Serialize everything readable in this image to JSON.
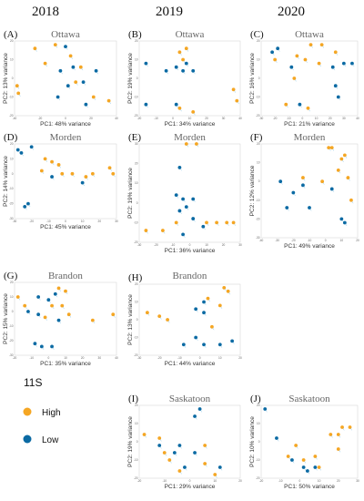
{
  "years": [
    "2018",
    "2019",
    "2020"
  ],
  "legend": {
    "title": "11S",
    "items": [
      {
        "label": "High",
        "color": "#f5a623"
      },
      {
        "label": "Low",
        "color": "#0b6aa3"
      }
    ]
  },
  "colors": {
    "high": "#f5a623",
    "low": "#0b6aa3",
    "label": "#5bb0dd",
    "frame": "#d8d8d8"
  },
  "chart_data": [
    {
      "type": "scatter",
      "panel": "(A)",
      "title": "Ottawa",
      "xlabel": "PC1: 48% variance",
      "ylabel": "PC2: 13% variance",
      "xlim": [
        -40,
        40
      ],
      "ylim": [
        -20,
        20
      ],
      "xticks": [
        -40,
        -20,
        0,
        20,
        40
      ],
      "yticks": [
        -20,
        -10,
        0,
        10,
        20
      ],
      "series": [
        {
          "group": "High",
          "points": [
            [
              -24,
              16
            ],
            [
              -8,
              18
            ],
            [
              4,
              12
            ],
            [
              -16,
              8
            ],
            [
              12,
              6
            ],
            [
              -37,
              -8
            ],
            [
              8,
              -2
            ],
            [
              34,
              -12
            ],
            [
              22,
              -10
            ],
            [
              -38,
              -4
            ]
          ]
        },
        {
          "group": "Low",
          "points": [
            [
              0,
              17
            ],
            [
              6,
              6
            ],
            [
              -4,
              4
            ],
            [
              14,
              -2
            ],
            [
              24,
              4
            ],
            [
              -6,
              -10
            ],
            [
              16,
              -14
            ],
            [
              2,
              -4
            ]
          ]
        }
      ]
    },
    {
      "type": "scatter",
      "panel": "(B)",
      "title": "Ottawa",
      "xlabel": "PC1: 34% variance",
      "ylabel": "PC2: 19% variance",
      "xlim": [
        -20,
        40
      ],
      "ylim": [
        -20,
        20
      ],
      "xticks": [
        -20,
        -10,
        0,
        10,
        20,
        30,
        40
      ],
      "yticks": [
        -20,
        -10,
        0,
        10,
        20
      ],
      "series": [
        {
          "group": "High",
          "points": [
            [
              8,
              16
            ],
            [
              4,
              14
            ],
            [
              36,
              -6
            ],
            [
              38,
              -12
            ],
            [
              4,
              -16
            ],
            [
              12,
              -18
            ],
            [
              6,
              10
            ]
          ]
        },
        {
          "group": "Low",
          "points": [
            [
              -16,
              8
            ],
            [
              -4,
              4
            ],
            [
              2,
              6
            ],
            [
              8,
              8
            ],
            [
              12,
              4
            ],
            [
              -16,
              -14
            ],
            [
              2,
              -14
            ],
            [
              6,
              4
            ]
          ]
        }
      ]
    },
    {
      "type": "scatter",
      "panel": "(C)",
      "title": "Ottawa",
      "xlabel": "PC1: 21% variance",
      "ylabel": "PC2: 16% variance",
      "xlim": [
        -30,
        40
      ],
      "ylim": [
        -20,
        20
      ],
      "xticks": [
        -30,
        -20,
        -10,
        0,
        10,
        20,
        30,
        40
      ],
      "yticks": [
        -20,
        -10,
        0,
        10,
        20
      ],
      "series": [
        {
          "group": "High",
          "points": [
            [
              6,
              18
            ],
            [
              14,
              18
            ],
            [
              2,
              10
            ],
            [
              -4,
              12
            ],
            [
              24,
              14
            ],
            [
              12,
              8
            ],
            [
              -6,
              0
            ],
            [
              -12,
              -14
            ],
            [
              4,
              -16
            ],
            [
              -20,
              10
            ]
          ]
        },
        {
          "group": "Low",
          "points": [
            [
              -22,
              14
            ],
            [
              -18,
              16
            ],
            [
              22,
              6
            ],
            [
              30,
              8
            ],
            [
              36,
              8
            ],
            [
              -8,
              6
            ],
            [
              24,
              -4
            ],
            [
              26,
              -10
            ],
            [
              -2,
              -14
            ]
          ]
        }
      ]
    },
    {
      "type": "scatter",
      "panel": "(D)",
      "title": "Morden",
      "xlabel": "PC1: 45% variance",
      "ylabel": "PC2: 14% variance",
      "xlim": [
        -30,
        30
      ],
      "ylim": [
        -30,
        20
      ],
      "xticks": [
        -30,
        -20,
        -10,
        0,
        10,
        20,
        30
      ],
      "yticks": [
        -30,
        -20,
        -10,
        0,
        10,
        20
      ],
      "series": [
        {
          "group": "High",
          "points": [
            [
              -14,
              2
            ],
            [
              -8,
              8
            ],
            [
              -4,
              6
            ],
            [
              -2,
              0
            ],
            [
              4,
              0
            ],
            [
              12,
              -2
            ],
            [
              16,
              0
            ],
            [
              26,
              4
            ],
            [
              28,
              0
            ],
            [
              -12,
              10
            ]
          ]
        },
        {
          "group": "Low",
          "points": [
            [
              -28,
              16
            ],
            [
              -26,
              14
            ],
            [
              -20,
              18
            ],
            [
              -22,
              -20
            ],
            [
              -24,
              -22
            ],
            [
              -8,
              -2
            ],
            [
              10,
              -6
            ]
          ]
        }
      ]
    },
    {
      "type": "scatter",
      "panel": "(E)",
      "title": "Morden",
      "xlabel": "PC1: 36% variance",
      "ylabel": "PC2: 19% variance",
      "xlim": [
        -30,
        30
      ],
      "ylim": [
        -20,
        30
      ],
      "xticks": [
        -30,
        -20,
        -10,
        0,
        10,
        20,
        30
      ],
      "yticks": [
        -20,
        -10,
        0,
        10,
        20,
        30
      ],
      "series": [
        {
          "group": "High",
          "points": [
            [
              -2,
              30
            ],
            [
              4,
              30
            ],
            [
              -26,
              -14
            ],
            [
              -16,
              -14
            ],
            [
              10,
              -10
            ],
            [
              16,
              -10
            ],
            [
              22,
              -10
            ],
            [
              26,
              -10
            ],
            [
              -8,
              -10
            ]
          ]
        },
        {
          "group": "Low",
          "points": [
            [
              -6,
              18
            ],
            [
              -8,
              4
            ],
            [
              -4,
              2
            ],
            [
              2,
              2
            ],
            [
              -6,
              -4
            ],
            [
              -2,
              -2
            ],
            [
              2,
              -8
            ],
            [
              8,
              -12
            ],
            [
              -4,
              -16
            ]
          ]
        }
      ]
    },
    {
      "type": "scatter",
      "panel": "(F)",
      "title": "Morden",
      "xlabel": "PC1: 49% variance",
      "ylabel": "PC2: 12% variance",
      "xlim": [
        -40,
        20
      ],
      "ylim": [
        -30,
        20
      ],
      "xticks": [
        -40,
        -30,
        -20,
        -10,
        0,
        10,
        20
      ],
      "yticks": [
        -30,
        -20,
        -10,
        0,
        10,
        20
      ],
      "series": [
        {
          "group": "High",
          "points": [
            [
              2,
              18
            ],
            [
              4,
              18
            ],
            [
              10,
              12
            ],
            [
              12,
              14
            ],
            [
              8,
              6
            ],
            [
              14,
              2
            ],
            [
              16,
              -10
            ],
            [
              -2,
              0
            ],
            [
              -14,
              2
            ]
          ]
        },
        {
          "group": "Low",
          "points": [
            [
              -28,
              0
            ],
            [
              -20,
              -6
            ],
            [
              -14,
              -2
            ],
            [
              -24,
              -14
            ],
            [
              -10,
              -14
            ],
            [
              10,
              -20
            ],
            [
              12,
              -22
            ],
            [
              4,
              -4
            ]
          ]
        }
      ]
    },
    {
      "type": "scatter",
      "panel": "(G)",
      "title": "Brandon",
      "xlabel": "PC1: 35% variance",
      "ylabel": "PC2: 15% variance",
      "xlim": [
        -20,
        40
      ],
      "ylim": [
        -30,
        20
      ],
      "xticks": [
        -20,
        -10,
        0,
        10,
        20,
        30,
        40
      ],
      "yticks": [
        -30,
        -20,
        -10,
        0,
        10,
        20
      ],
      "series": [
        {
          "group": "High",
          "points": [
            [
              6,
              16
            ],
            [
              10,
              14
            ],
            [
              -18,
              10
            ],
            [
              -14,
              4
            ],
            [
              2,
              4
            ],
            [
              8,
              4
            ],
            [
              12,
              -2
            ],
            [
              -2,
              -4
            ],
            [
              26,
              -6
            ],
            [
              38,
              -2
            ]
          ]
        },
        {
          "group": "Low",
          "points": [
            [
              -6,
              10
            ],
            [
              0,
              8
            ],
            [
              4,
              12
            ],
            [
              -12,
              0
            ],
            [
              -6,
              -2
            ],
            [
              6,
              -6
            ],
            [
              -8,
              -22
            ],
            [
              -4,
              -24
            ],
            [
              2,
              -24
            ]
          ]
        }
      ]
    },
    {
      "type": "scatter",
      "panel": "(H)",
      "title": "Brandon",
      "xlabel": "PC1: 44% variance",
      "ylabel": "PC2: 13% variance",
      "xlim": [
        -30,
        20
      ],
      "ylim": [
        -20,
        20
      ],
      "xticks": [
        -30,
        -20,
        -10,
        0,
        10,
        20
      ],
      "yticks": [
        -20,
        -10,
        0,
        10,
        20
      ],
      "series": [
        {
          "group": "High",
          "points": [
            [
              12,
              18
            ],
            [
              14,
              16
            ],
            [
              4,
              12
            ],
            [
              10,
              8
            ],
            [
              -26,
              4
            ],
            [
              -20,
              2
            ],
            [
              -16,
              0
            ],
            [
              6,
              -4
            ]
          ]
        },
        {
          "group": "Low",
          "points": [
            [
              2,
              10
            ],
            [
              -2,
              6
            ],
            [
              2,
              4
            ],
            [
              -2,
              -10
            ],
            [
              2,
              -14
            ],
            [
              -8,
              -14
            ],
            [
              10,
              -14
            ],
            [
              16,
              -12
            ]
          ]
        }
      ]
    },
    {
      "type": "scatter",
      "panel": "(I)",
      "title": "Saskatoon",
      "xlabel": "PC1: 29% variance",
      "ylabel": "PC2: 19% variance",
      "xlim": [
        -20,
        20
      ],
      "ylim": [
        -20,
        20
      ],
      "xticks": [
        -20,
        -10,
        0,
        10,
        20
      ],
      "yticks": [
        -20,
        -10,
        0,
        10,
        20
      ],
      "series": [
        {
          "group": "High",
          "points": [
            [
              -18,
              4
            ],
            [
              -10,
              -6
            ],
            [
              -8,
              -10
            ],
            [
              -4,
              -16
            ],
            [
              6,
              -12
            ],
            [
              10,
              -18
            ],
            [
              6,
              -2
            ],
            [
              -12,
              2
            ]
          ]
        },
        {
          "group": "Low",
          "points": [
            [
              2,
              14
            ],
            [
              4,
              18
            ],
            [
              -4,
              -2
            ],
            [
              -6,
              -6
            ],
            [
              2,
              -6
            ],
            [
              -2,
              -14
            ],
            [
              12,
              -14
            ],
            [
              -12,
              -2
            ]
          ]
        }
      ]
    },
    {
      "type": "scatter",
      "panel": "(J)",
      "title": "Saskatoon",
      "xlabel": "PC1: 50% variance",
      "ylabel": "PC2: 10% variance",
      "xlim": [
        -20,
        30
      ],
      "ylim": [
        -20,
        20
      ],
      "xticks": [
        -20,
        -10,
        0,
        10,
        20,
        30
      ],
      "yticks": [
        -20,
        -10,
        0,
        10,
        20
      ],
      "series": [
        {
          "group": "High",
          "points": [
            [
              22,
              8
            ],
            [
              26,
              8
            ],
            [
              20,
              4
            ],
            [
              16,
              4
            ],
            [
              8,
              -8
            ],
            [
              2,
              -10
            ],
            [
              10,
              -14
            ],
            [
              -6,
              -8
            ],
            [
              -2,
              -2
            ],
            [
              20,
              -4
            ]
          ]
        },
        {
          "group": "Low",
          "points": [
            [
              -18,
              18
            ],
            [
              -12,
              2
            ],
            [
              -4,
              -10
            ],
            [
              2,
              -14
            ],
            [
              4,
              -16
            ],
            [
              8,
              -14
            ]
          ]
        }
      ]
    }
  ]
}
